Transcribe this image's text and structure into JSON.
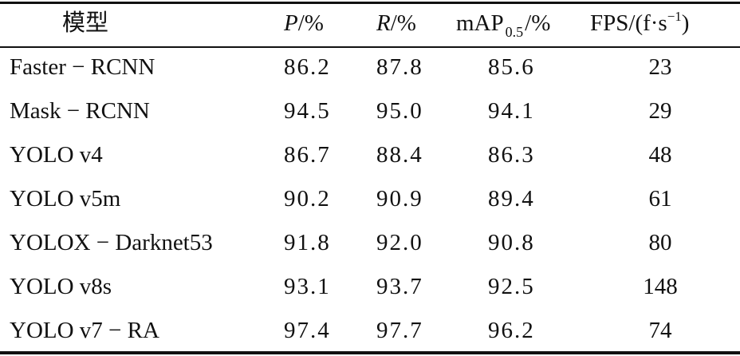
{
  "table": {
    "header": {
      "model": "模型",
      "p_var": "P",
      "p_unit": "/%",
      "r_var": "R",
      "r_unit": "/%",
      "map_main": "mAP",
      "map_sub": "0.5",
      "map_unit": "/%",
      "fps_main": "FPS/(f·s",
      "fps_sup": "−1",
      "fps_close": ")"
    },
    "rows": [
      {
        "model": "Faster − RCNN",
        "p": "86.2",
        "r": "87.8",
        "map": "85.6",
        "fps": "23"
      },
      {
        "model": "Mask − RCNN",
        "p": "94.5",
        "r": "95.0",
        "map": "94.1",
        "fps": "29"
      },
      {
        "model": "YOLO v4",
        "p": "86.7",
        "r": "88.4",
        "map": "86.3",
        "fps": "48"
      },
      {
        "model": "YOLO v5m",
        "p": "90.2",
        "r": "90.9",
        "map": "89.4",
        "fps": "61"
      },
      {
        "model": "YOLOX − Darknet53",
        "p": "91.8",
        "r": "92.0",
        "map": "90.8",
        "fps": "80"
      },
      {
        "model": "YOLO v8s",
        "p": "93.1",
        "r": "93.7",
        "map": "92.5",
        "fps": "148"
      },
      {
        "model": "YOLO v7 − RA",
        "p": "97.4",
        "r": "97.7",
        "map": "96.2",
        "fps": "74"
      }
    ]
  }
}
